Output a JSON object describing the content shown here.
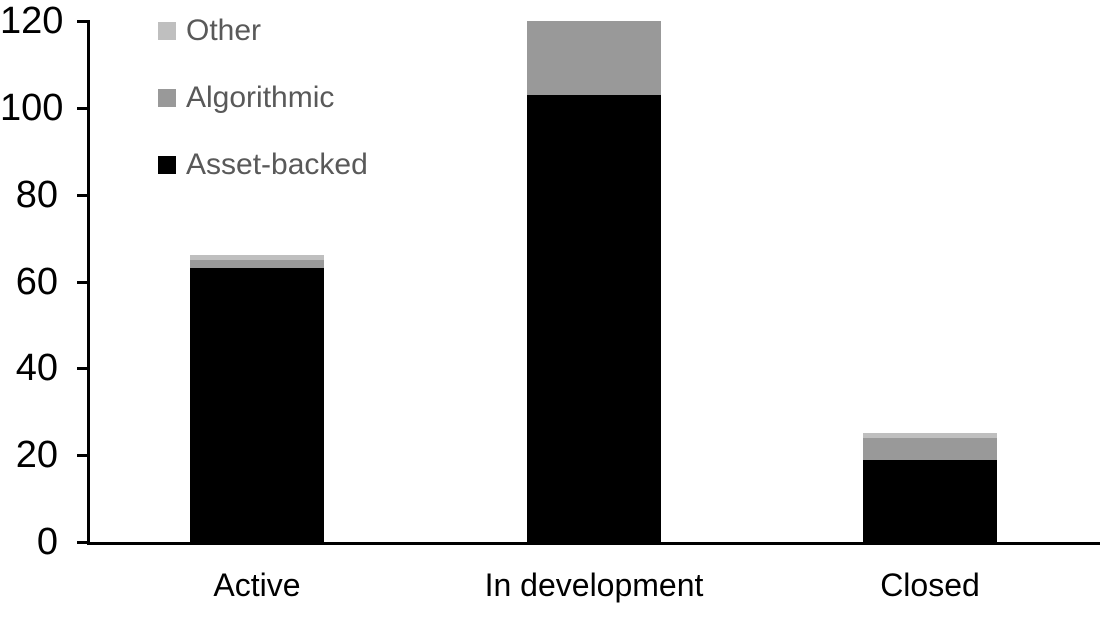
{
  "chart_data": {
    "type": "bar",
    "stacked": true,
    "title": "",
    "categories": [
      "Active",
      "In development",
      "Closed"
    ],
    "series": [
      {
        "name": "Asset-backed",
        "color": "#000000",
        "values": [
          63,
          103,
          19
        ]
      },
      {
        "name": "Algorithmic",
        "color": "#999999",
        "values": [
          2,
          17,
          5
        ]
      },
      {
        "name": "Other",
        "color": "#bfbfbf",
        "values": [
          1,
          0,
          1
        ]
      }
    ],
    "totals": [
      66,
      120,
      25
    ],
    "xlabel": "",
    "ylabel": "",
    "ylim": [
      0,
      120
    ],
    "yticks": [
      0,
      20,
      40,
      60,
      80,
      100,
      120
    ],
    "grid": false,
    "legend_position": "top-left",
    "legend_order": [
      "Other",
      "Algorithmic",
      "Asset-backed"
    ],
    "axis_color": "#000000",
    "tick_label_color": "#000000",
    "category_label_color": "#000000",
    "legend_text_color": "#595959",
    "background_color": "#ffffff"
  }
}
